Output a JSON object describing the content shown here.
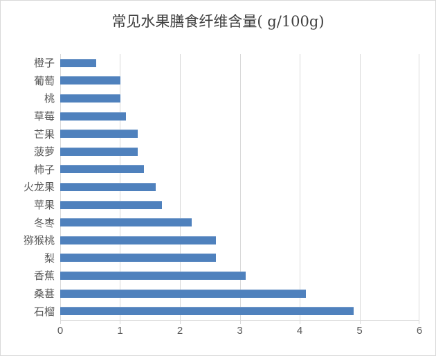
{
  "chart_data": {
    "type": "bar",
    "orientation": "horizontal",
    "title": "常见水果膳食纤维含量( g/100g)",
    "categories": [
      "橙子",
      "葡萄",
      "桃",
      "草莓",
      "芒果",
      "菠萝",
      "柿子",
      "火龙果",
      "苹果",
      "冬枣",
      "猕猴桃",
      "梨",
      "香蕉",
      "桑葚",
      "石榴"
    ],
    "values": [
      0.6,
      1.0,
      1.0,
      1.1,
      1.3,
      1.3,
      1.4,
      1.6,
      1.7,
      2.2,
      2.6,
      2.6,
      3.1,
      4.1,
      4.9
    ],
    "category_order": "top-to-bottom",
    "xlabel": "",
    "ylabel": "",
    "xlim": [
      0,
      6
    ],
    "xticks": [
      "0",
      "1",
      "2",
      "3",
      "4",
      "5",
      "6"
    ],
    "grid": "vertical-only",
    "legend": "none",
    "colors": {
      "bar": "#4F81BD",
      "gridline": "#D9D9D9",
      "axis_line": "#D9D9D9",
      "chart_border": "#D9D9D9",
      "background": "#FFFFFF",
      "title_text": "#404040",
      "tick_text": "#595959",
      "category_text": "#595959"
    }
  }
}
